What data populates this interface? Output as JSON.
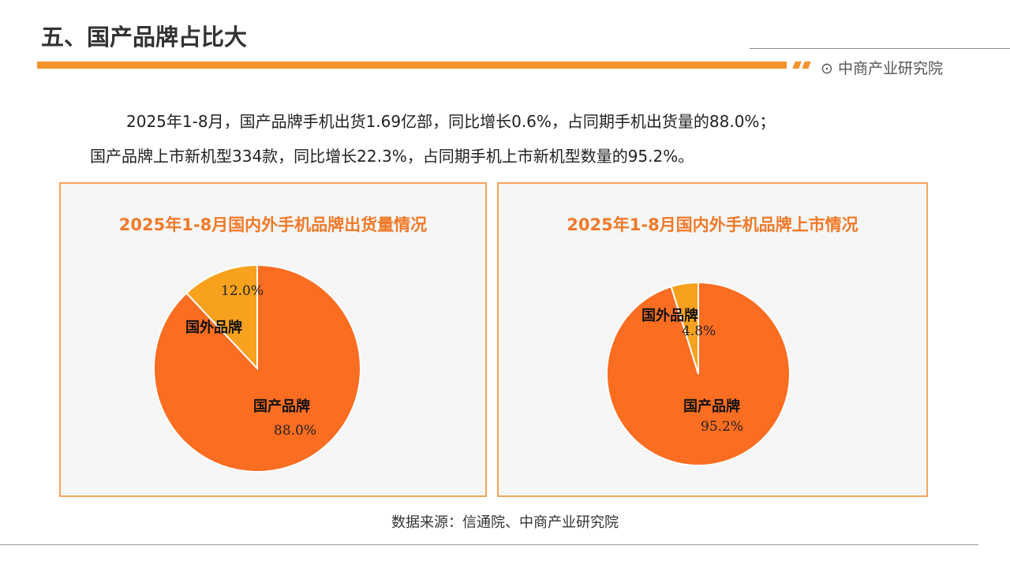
{
  "header": {
    "title": "五、国产品牌占比大",
    "brand": "中商产业研究院",
    "brand_icon": "target-icon"
  },
  "summary": {
    "line1": "2025年1-8月，国产品牌手机出货1.69亿部，同比增长0.6%，占同期手机出货量的88.0%；",
    "line2": "国产品牌上市新机型334款，同比增长22.3%，占同期手机上市新机型数量的95.2%。"
  },
  "chart_data": [
    {
      "type": "pie",
      "title": "2025年1-8月国内外手机品牌出货量情况",
      "categories": [
        "国产品牌",
        "国外品牌"
      ],
      "values": [
        88.0,
        12.0
      ],
      "value_labels": [
        "88.0%",
        "12.0%"
      ],
      "colors": [
        "#fb6d21",
        "#f7a11e"
      ]
    },
    {
      "type": "pie",
      "title": "2025年1-8月国内外手机品牌上市情况",
      "categories": [
        "国产品牌",
        "国外品牌"
      ],
      "values": [
        95.2,
        4.8
      ],
      "value_labels": [
        "95.2%",
        "4.8%"
      ],
      "colors": [
        "#fb6d21",
        "#f7a11e"
      ]
    }
  ],
  "footer": {
    "source": "数据来源：信通院、中商产业研究院"
  }
}
